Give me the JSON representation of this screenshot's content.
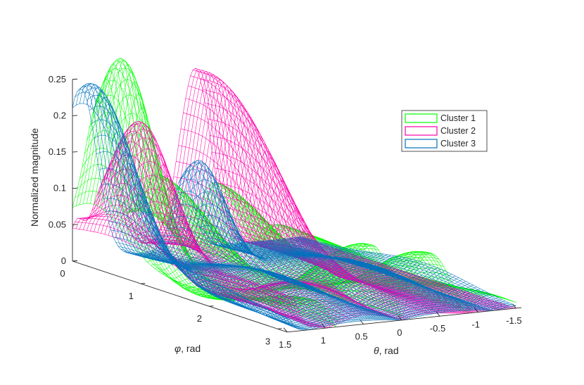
{
  "chart_data": {
    "type": "surface3d",
    "title": "",
    "zlabel": "Normalized magnitude",
    "xlabel_sym": "φ",
    "xlabel_text": ", rad",
    "ylabel_sym": "θ",
    "ylabel_text": ", rad",
    "x_axis": {
      "name": "phi",
      "range": [
        0,
        3.14
      ],
      "ticks": [
        0,
        1,
        2,
        3
      ],
      "tick_labels": [
        "0",
        "1",
        "2",
        "3"
      ]
    },
    "y_axis": {
      "name": "theta",
      "range": [
        -1.57,
        1.57
      ],
      "ticks": [
        1.5,
        1,
        0.5,
        0,
        -0.5,
        -1,
        -1.5
      ],
      "tick_labels": [
        "1.5",
        "1",
        "0.5",
        "0",
        "-0.5",
        "-1",
        "-1.5"
      ]
    },
    "z_axis": {
      "range": [
        0,
        0.25
      ],
      "ticks": [
        0,
        0.05,
        0.1,
        0.15,
        0.2,
        0.25
      ],
      "tick_labels": [
        "0",
        "0.05",
        "0.1",
        "0.15",
        "0.2",
        "0.25"
      ]
    },
    "legend": {
      "placement": "top-right"
    },
    "grid": false,
    "series": [
      {
        "name": "Cluster 1",
        "color": "#00ff00",
        "mesh": "wireframe",
        "peak": 0.255
      },
      {
        "name": "Cluster 2",
        "color": "#ff00aa",
        "mesh": "wireframe",
        "peak": 0.245
      },
      {
        "name": "Cluster 3",
        "color": "#0072bd",
        "mesh": "wireframe",
        "peak": 0.245
      }
    ]
  }
}
